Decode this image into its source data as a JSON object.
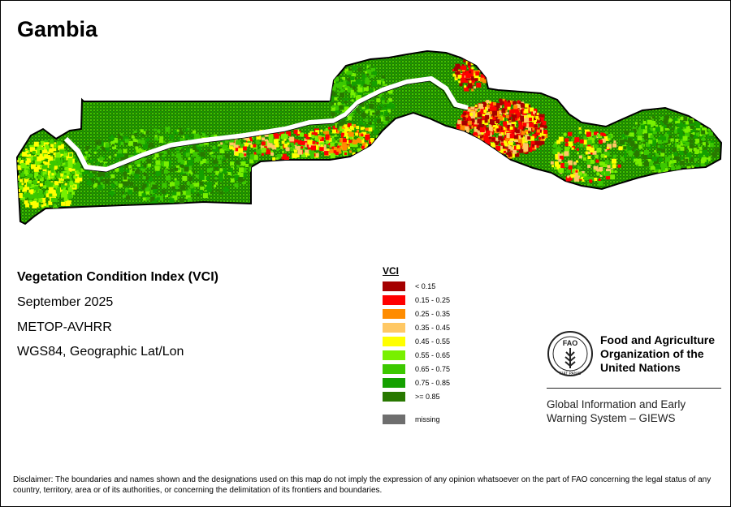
{
  "map": {
    "title": "Gambia",
    "info": {
      "index_name": "Vegetation Condition Index (VCI)",
      "date": "September 2025",
      "sensor": "METOP-AVHRR",
      "projection": "WGS84, Geographic Lat/Lon"
    },
    "legend": {
      "title": "VCI",
      "classes": [
        {
          "label": "< 0.15",
          "color": "#a50000"
        },
        {
          "label": "0.15 - 0.25",
          "color": "#ff0000"
        },
        {
          "label": "0.25 - 0.35",
          "color": "#ff8c00"
        },
        {
          "label": "0.35 - 0.45",
          "color": "#ffc864"
        },
        {
          "label": "0.45 - 0.55",
          "color": "#ffff00"
        },
        {
          "label": "0.55 - 0.65",
          "color": "#78f000"
        },
        {
          "label": "0.65 - 0.75",
          "color": "#3cc800"
        },
        {
          "label": "0.75 - 0.85",
          "color": "#14a000"
        },
        {
          "label": ">= 0.85",
          "color": "#287800"
        }
      ],
      "missing": {
        "label": "missing",
        "color": "#6e6e6e"
      }
    },
    "organization": {
      "name_lines": [
        "Food and Agriculture",
        "Organization of the",
        "United Nations"
      ],
      "logo_text": {
        "top": "FAO",
        "motto": "FIAT PANIS"
      },
      "system_lines": [
        "Global Information and Early",
        "Warning System – GIEWS"
      ]
    },
    "disclaimer": "Disclaimer: The boundaries and names shown and the designations used on this map do not imply the expression of any opinion whatsoever on the part of FAO concerning the legal status of any country, territory, area or of its authorities, or concerning the delimitation of its frontiers and boundaries.",
    "colors": {
      "boundary": "#000000",
      "river": "#ffffff",
      "hotspot_core": "#a50000"
    }
  }
}
